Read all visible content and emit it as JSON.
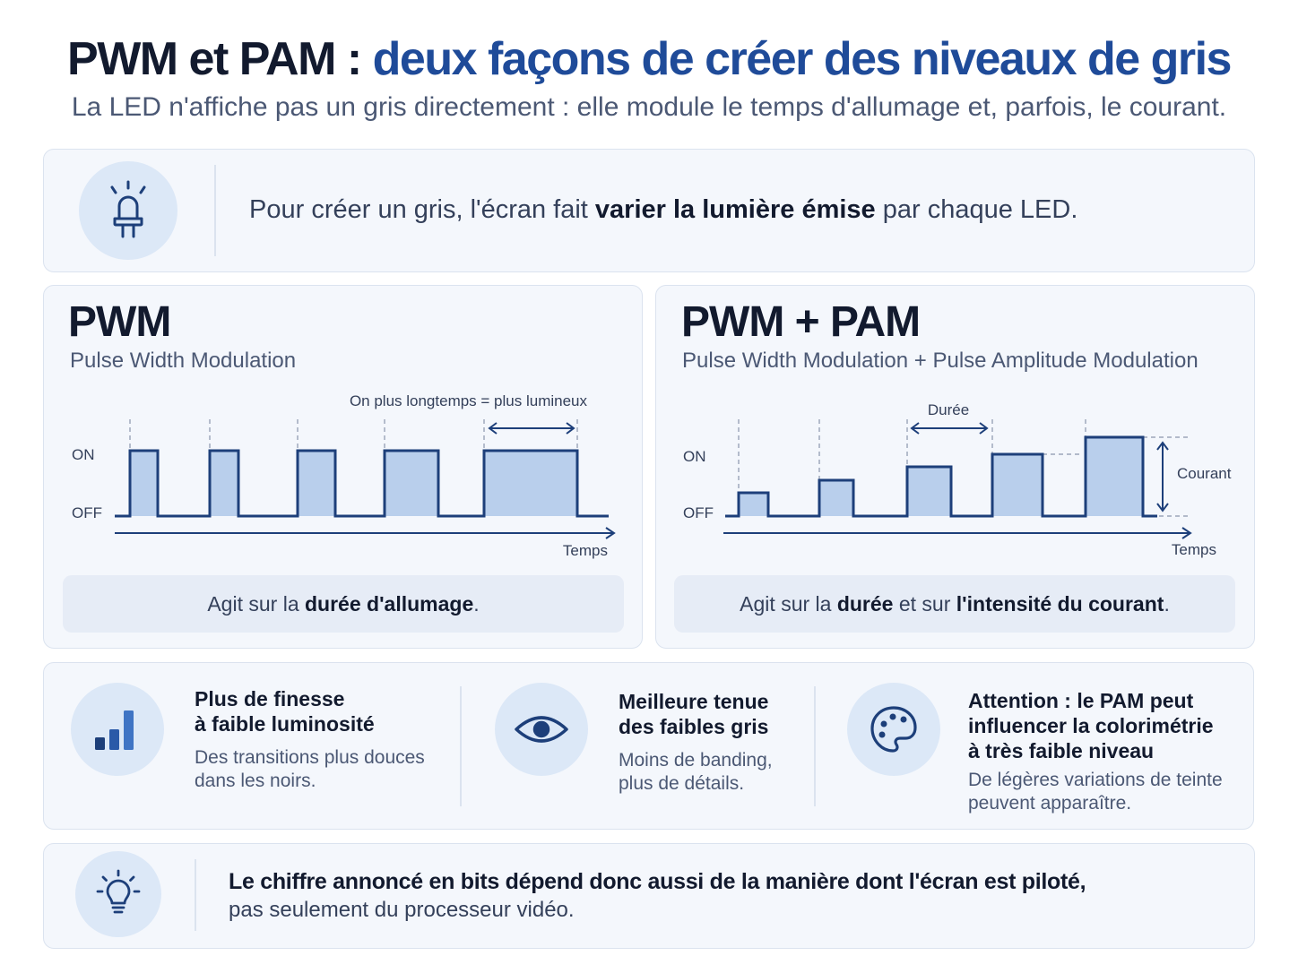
{
  "header": {
    "title_part1": "PWM et PAM :",
    "title_part2": "deux façons de créer des niveaux de gris",
    "subtitle": "La LED n'affiche pas un gris directement : elle module le temps d'allumage et, parfois, le courant."
  },
  "intro": {
    "icon": "led-bulb-icon",
    "text_before": "Pour créer un gris, l'écran fait ",
    "text_bold": "varier la lumière émise",
    "text_after": " par chaque LED."
  },
  "pwm": {
    "title": "PWM",
    "subtitle": "Pulse Width Modulation",
    "label_on": "ON",
    "label_off": "OFF",
    "annotation": "On plus longtemps = plus lumineux",
    "axis_label": "Temps",
    "caption_before": "Agit sur la ",
    "caption_bold": "durée d'allumage",
    "caption_after": "."
  },
  "pwm_pam": {
    "title": "PWM + PAM",
    "subtitle": "Pulse Width Modulation + Pulse Amplitude Modulation",
    "label_on": "ON",
    "label_off": "OFF",
    "annotation_duration": "Durée",
    "annotation_current": "Courant",
    "axis_label": "Temps",
    "caption_before": "Agit sur la ",
    "caption_bold1": "durée",
    "caption_middle": " et sur ",
    "caption_bold2": "l'intensité du courant",
    "caption_after": "."
  },
  "benefits": [
    {
      "icon": "bar-chart-icon",
      "title_lines": [
        "Plus de finesse",
        "à faible luminosité"
      ],
      "desc_lines": [
        "Des transitions plus douces",
        "dans les noirs."
      ]
    },
    {
      "icon": "eye-icon",
      "title_lines": [
        "Meilleure tenue",
        "des faibles gris"
      ],
      "desc_lines": [
        "Moins de banding,",
        "plus de détails."
      ]
    },
    {
      "icon": "palette-icon",
      "title_lines": [
        "Attention : le PAM peut",
        "influencer la colorimétrie",
        "à très faible niveau"
      ],
      "desc_lines": [
        "De légères variations de teinte",
        "peuvent apparaître."
      ]
    }
  ],
  "conclusion": {
    "icon": "lightbulb-icon",
    "bold": "Le chiffre annoncé en bits dépend donc aussi de la manière dont l'écran est piloté,",
    "normal": "pas seulement du processeur vidéo."
  },
  "colors": {
    "accent": "#1f4b99",
    "waveform": "#1d3f7a",
    "pulse_fill": "#b9cfec",
    "card_bg": "#f4f7fc",
    "icon_bg": "#dce8f7"
  }
}
